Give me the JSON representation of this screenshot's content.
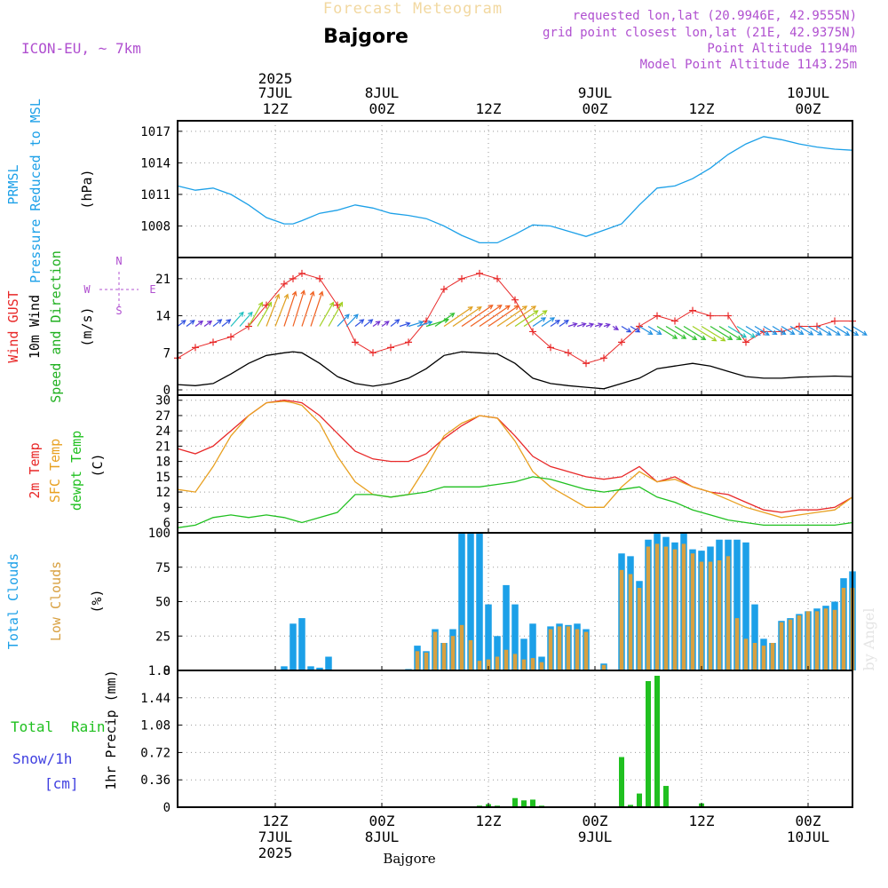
{
  "header": {
    "super_title": "Forecast Meteogram",
    "station": "Bajgore",
    "model": "ICON-EU, ~ 7km",
    "requested": "requested lon,lat (20.9946E, 42.9555N)",
    "grid_point": "grid point closest lon,lat (21E, 42.9375N)",
    "point_alt": "Point Altitude 1194m",
    "model_alt": "Model Point Altitude 1143.25m",
    "footer_station": "Bajgore",
    "watermark": "by Angel"
  },
  "time_axis": {
    "year": "2025",
    "ticks": [
      {
        "h": 12,
        "hour": "12Z",
        "date": "7JUL",
        "year": "2025"
      },
      {
        "h": 24,
        "hour": "00Z",
        "date": "8JUL",
        "year": ""
      },
      {
        "h": 36,
        "hour": "12Z",
        "date": "",
        "year": ""
      },
      {
        "h": 48,
        "hour": "00Z",
        "date": "9JUL",
        "year": ""
      },
      {
        "h": 60,
        "hour": "12Z",
        "date": "",
        "year": ""
      },
      {
        "h": 72,
        "hour": "00Z",
        "date": "10JUL",
        "year": ""
      }
    ],
    "range_hours": [
      1,
      77
    ]
  },
  "panels": {
    "pressure": {
      "labels": [
        "PRMSL",
        "Pressure Reduced to MSL",
        "(hPa)"
      ],
      "colors": [
        "#1ca0e8",
        "#1ca0e8",
        "#000000"
      ],
      "ticks": [
        "1017",
        "1014",
        "1011",
        "1008"
      ]
    },
    "wind": {
      "labels": [
        "Wind GUST",
        "10m Wind",
        "Speed and Direction",
        "(m/s)"
      ],
      "colors": [
        "#e82828",
        "#000000",
        "#20b020",
        "#000000"
      ],
      "ticks": [
        "21",
        "14",
        "7",
        "0"
      ],
      "compass": [
        "N",
        "W",
        "E",
        "S"
      ]
    },
    "temp": {
      "labels": [
        "2m Temp",
        "SFC Temp",
        "dewpt Temp",
        "(C)"
      ],
      "colors": [
        "#e82828",
        "#e8a020",
        "#20c020",
        "#000000"
      ],
      "ticks": [
        "30",
        "27",
        "24",
        "21",
        "18",
        "15",
        "12",
        "9",
        "6"
      ]
    },
    "clouds": {
      "labels": [
        "Total Clouds",
        "Low Clouds",
        "(%)"
      ],
      "colors": [
        "#1ca0e8",
        "#d8a040",
        "#000000"
      ],
      "ticks": [
        "100",
        "75",
        "50",
        "25",
        "0"
      ]
    },
    "precip": {
      "labels": [
        "Total",
        "Rain",
        "Snow/1h",
        "[cm]",
        "1hr Precip (mm)"
      ],
      "colors": [
        "#20c020",
        "#20c020",
        "#4040e0",
        "#4040e0",
        "#000000"
      ],
      "ticks": [
        "1.8",
        "1.44",
        "1.08",
        "0.72",
        "0.36",
        "0"
      ]
    }
  },
  "chart_data": [
    {
      "type": "line",
      "title": "PRMSL Pressure Reduced to MSL",
      "ylabel": "(hPa)",
      "ylim": [
        1005,
        1018
      ],
      "x": [
        1,
        3,
        5,
        7,
        9,
        11,
        13,
        14,
        15,
        17,
        19,
        21,
        23,
        25,
        27,
        29,
        31,
        33,
        35,
        37,
        39,
        41,
        43,
        45,
        47,
        49,
        51,
        53,
        55,
        57,
        59,
        61,
        63,
        65,
        67,
        69,
        71,
        73,
        75,
        77
      ],
      "series": [
        {
          "name": "PRMSL",
          "color": "#1ca0e8",
          "values": [
            1011.8,
            1011.4,
            1011.6,
            1011.0,
            1010.0,
            1008.8,
            1008.2,
            1008.2,
            1008.5,
            1009.2,
            1009.5,
            1010.0,
            1009.7,
            1009.2,
            1009.0,
            1008.7,
            1008.0,
            1007.1,
            1006.4,
            1006.4,
            1007.2,
            1008.1,
            1008.0,
            1007.5,
            1007.0,
            1007.6,
            1008.2,
            1010.0,
            1011.6,
            1011.8,
            1012.5,
            1013.5,
            1014.8,
            1015.8,
            1016.5,
            1016.2,
            1015.8,
            1015.5,
            1015.3,
            1015.2
          ]
        }
      ]
    },
    {
      "type": "line",
      "title": "Wind GUST / 10m Wind Speed and Direction",
      "ylabel": "(m/s)",
      "ylim": [
        -1,
        25
      ],
      "x": [
        1,
        3,
        5,
        7,
        9,
        11,
        13,
        14,
        15,
        17,
        19,
        21,
        23,
        25,
        27,
        29,
        31,
        33,
        35,
        37,
        39,
        41,
        43,
        45,
        47,
        49,
        51,
        53,
        55,
        57,
        59,
        61,
        63,
        65,
        67,
        69,
        71,
        73,
        75,
        77
      ],
      "series": [
        {
          "name": "Wind GUST",
          "color": "#e82828",
          "values": [
            6,
            8,
            9,
            10,
            12,
            16,
            20,
            21,
            22,
            21,
            16,
            9,
            7,
            8,
            9,
            13,
            19,
            21,
            22,
            21,
            17,
            11,
            8,
            7,
            5,
            6,
            9,
            12,
            14,
            13,
            15,
            14,
            14,
            9,
            11,
            11,
            12,
            12,
            13,
            13
          ]
        },
        {
          "name": "10m Wind",
          "color": "#000000",
          "values": [
            1,
            0.8,
            1.2,
            3,
            5,
            6.5,
            7,
            7.2,
            7,
            5,
            2.5,
            1.2,
            0.7,
            1.2,
            2.2,
            4,
            6.5,
            7.2,
            7,
            6.8,
            5,
            2.2,
            1.2,
            0.8,
            0.5,
            0.2,
            1.2,
            2.2,
            4,
            4.5,
            5,
            4.5,
            3.5,
            2.5,
            2.2,
            2.2,
            2.4,
            2.5,
            2.6,
            2.5
          ]
        }
      ]
    },
    {
      "type": "line",
      "title": "2m Temp / SFC Temp / dewpt Temp",
      "ylabel": "(C)",
      "ylim": [
        4,
        31
      ],
      "x": [
        1,
        3,
        5,
        7,
        9,
        11,
        13,
        14,
        15,
        17,
        19,
        21,
        23,
        25,
        27,
        29,
        31,
        33,
        35,
        37,
        39,
        41,
        43,
        45,
        47,
        49,
        51,
        53,
        55,
        57,
        59,
        61,
        63,
        65,
        67,
        69,
        71,
        73,
        75,
        77
      ],
      "series": [
        {
          "name": "2m Temp",
          "color": "#e82828",
          "values": [
            20.5,
            19.5,
            21,
            24,
            27,
            29.5,
            30,
            29.8,
            29.5,
            27,
            23.5,
            20,
            18.5,
            18,
            18,
            19.5,
            22.5,
            25,
            27,
            26.5,
            23,
            19,
            17,
            16,
            15,
            14.5,
            15,
            17,
            14,
            15,
            13,
            12,
            11.5,
            10,
            8.5,
            8,
            8.5,
            8.5,
            9,
            11
          ]
        },
        {
          "name": "SFC Temp",
          "color": "#e8a020",
          "values": [
            12.5,
            12,
            17,
            23,
            27,
            29.5,
            29.8,
            29.5,
            29,
            25.5,
            19,
            14,
            11.5,
            11,
            11.5,
            17,
            23,
            25.5,
            27,
            26.5,
            22,
            16,
            13,
            11,
            9,
            9,
            13,
            16,
            14,
            14.5,
            13,
            12,
            10.5,
            9,
            8,
            7,
            7.5,
            8,
            8.5,
            11
          ]
        },
        {
          "name": "dewpt Temp",
          "color": "#20c020",
          "values": [
            5,
            5.5,
            7,
            7.5,
            7,
            7.5,
            7,
            6.5,
            6,
            7,
            8,
            11.5,
            11.5,
            11,
            11.5,
            12,
            13,
            13,
            13,
            13.5,
            14,
            15,
            14.5,
            13.5,
            12.5,
            12,
            12.5,
            13,
            11,
            10,
            8.5,
            7.5,
            6.5,
            6,
            5.5,
            5.5,
            5.5,
            5.5,
            5.5,
            6
          ]
        }
      ]
    },
    {
      "type": "bar",
      "title": "Total Clouds / Low Clouds",
      "ylabel": "(%)",
      "ylim": [
        0,
        100
      ],
      "x": [
        13,
        14,
        15,
        16,
        17,
        18,
        27,
        28,
        29,
        30,
        31,
        32,
        33,
        34,
        35,
        36,
        37,
        38,
        39,
        40,
        41,
        42,
        43,
        44,
        45,
        46,
        47,
        48,
        49,
        51,
        52,
        53,
        54,
        55,
        56,
        57,
        58,
        59,
        60,
        61,
        62,
        63,
        64,
        65,
        66,
        67,
        68,
        69,
        70,
        71,
        72,
        73,
        74,
        75,
        76,
        77
      ],
      "series": [
        {
          "name": "Total Clouds",
          "color": "#1ca0e8",
          "values": [
            3,
            34,
            38,
            3,
            2,
            10,
            1,
            18,
            14,
            30,
            20,
            30,
            100,
            100,
            100,
            48,
            25,
            62,
            48,
            23,
            34,
            10,
            32,
            34,
            33,
            34,
            30,
            0,
            5,
            85,
            83,
            65,
            95,
            100,
            97,
            93,
            100,
            88,
            87,
            90,
            95,
            95,
            95,
            93,
            48,
            23,
            20,
            36,
            38,
            41,
            43,
            45,
            47,
            50,
            67,
            72
          ]
        },
        {
          "name": "Low Clouds",
          "color": "#d8a040",
          "values": [
            0,
            0,
            0,
            0,
            0,
            0,
            0,
            14,
            13,
            28,
            20,
            25,
            33,
            22,
            7,
            8,
            10,
            15,
            12,
            8,
            9,
            6,
            30,
            32,
            32,
            30,
            28,
            0,
            4,
            73,
            70,
            60,
            90,
            92,
            90,
            88,
            92,
            85,
            79,
            79,
            80,
            83,
            38,
            23,
            20,
            18,
            20,
            35,
            37,
            40,
            43,
            43,
            45,
            44,
            60,
            60
          ]
        }
      ]
    },
    {
      "type": "bar",
      "title": "1hr Precip",
      "ylabel": "1hr Precip (mm)",
      "ylim": [
        0,
        1.8
      ],
      "x": [
        35,
        36,
        37,
        39,
        40,
        41,
        42,
        51,
        52,
        53,
        54,
        55,
        56,
        60,
        61
      ],
      "series": [
        {
          "name": "Total Rain",
          "color": "#20c020",
          "values": [
            0.02,
            0.04,
            0.02,
            0.12,
            0.09,
            0.1,
            0.02,
            0.66,
            0.03,
            0.18,
            1.66,
            1.73,
            0.28,
            0.05,
            0.01
          ]
        }
      ]
    }
  ]
}
